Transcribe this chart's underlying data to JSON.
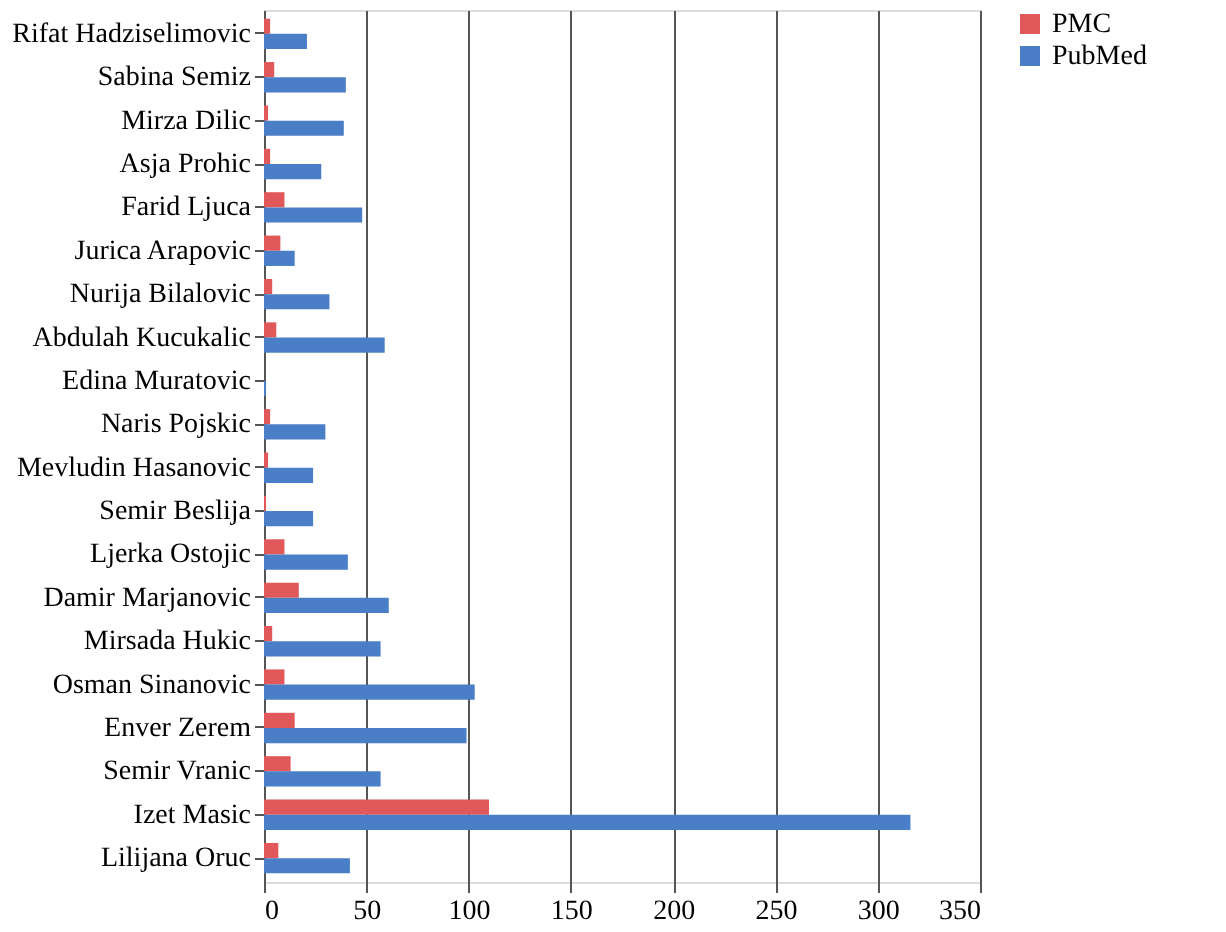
{
  "chart_data": {
    "type": "bar",
    "orientation": "horizontal",
    "categories": [
      "Rifat Hadziselimovic",
      "Sabina Semiz",
      "Mirza Dilic",
      "Asja Prohic",
      "Farid Ljuca",
      "Jurica Arapovic",
      "Nurija Bilalovic",
      "Abdulah Kucukalic",
      "Edina Muratovic",
      "Naris Pojskic",
      "Mevludin Hasanovic",
      "Semir Beslija",
      "Ljerka Ostojic",
      "Damir Marjanovic",
      "Mirsada Hukic",
      "Osman Sinanovic",
      "Enver Zerem",
      "Semir Vranic",
      "Izet Masic",
      "Lilijana Oruc"
    ],
    "series": [
      {
        "name": "PMC",
        "color": "#e0585a",
        "values": [
          3,
          5,
          2,
          3,
          10,
          8,
          4,
          6,
          0,
          3,
          2,
          1,
          10,
          17,
          4,
          10,
          15,
          13,
          110,
          7
        ]
      },
      {
        "name": "PubMed",
        "color": "#4a7fc8",
        "values": [
          21,
          40,
          39,
          28,
          48,
          15,
          32,
          59,
          1,
          30,
          24,
          24,
          41,
          61,
          57,
          103,
          99,
          57,
          316,
          42
        ]
      }
    ],
    "xlim": [
      0,
      350
    ],
    "xticks": [
      0,
      50,
      100,
      150,
      200,
      250,
      300,
      350
    ],
    "grid": "x",
    "legend": "right"
  }
}
